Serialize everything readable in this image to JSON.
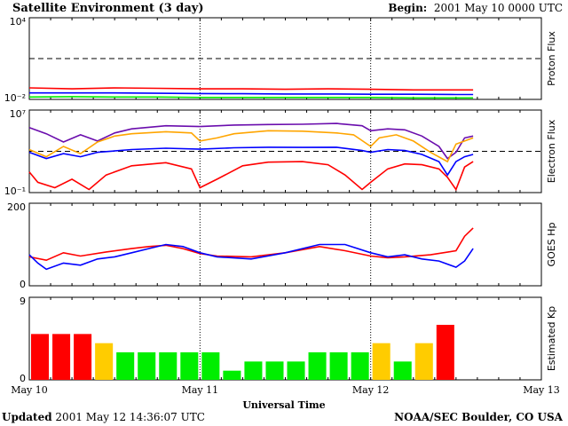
{
  "header": {
    "title": "Satellite Environment (3 day)",
    "begin_label": "Begin:",
    "begin_value": "2001 May 10 0000 UTC"
  },
  "footer": {
    "updated_label": "Updated",
    "updated_value": "2001 May 12 14:36:07 UTC",
    "credit": "NOAA/SEC Boulder, CO USA"
  },
  "colors": {
    "red": "#ff0000",
    "blue": "#0000ff",
    "green": "#00ee00",
    "orange": "#ffa500",
    "purple": "#6a0dad",
    "yellow": "#ffcc00"
  },
  "chart_data": [
    {
      "type": "line",
      "ylabel": "Proton Flux",
      "yscale": "log",
      "ylim": [
        0.01,
        10000
      ],
      "yticks": [
        {
          "value": 0.01,
          "label": "10⁻²"
        },
        {
          "value": 10000,
          "label": "10⁴"
        }
      ],
      "threshold": 10,
      "x_range_days": [
        0,
        3
      ],
      "series": [
        {
          "color": "red",
          "x": [
            0,
            0.25,
            0.5,
            0.75,
            1.0,
            1.25,
            1.5,
            1.75,
            2.0,
            2.25,
            2.5,
            2.6
          ],
          "y": [
            0.07,
            0.06,
            0.07,
            0.065,
            0.06,
            0.06,
            0.055,
            0.06,
            0.055,
            0.05,
            0.05,
            0.05
          ]
        },
        {
          "color": "blue",
          "x": [
            0,
            0.25,
            0.5,
            0.75,
            1.0,
            1.25,
            1.5,
            1.75,
            2.0,
            2.25,
            2.5,
            2.6
          ],
          "y": [
            0.03,
            0.03,
            0.03,
            0.028,
            0.027,
            0.026,
            0.025,
            0.025,
            0.024,
            0.024,
            0.023,
            0.023
          ]
        },
        {
          "color": "green",
          "x": [
            0,
            0.25,
            0.5,
            0.75,
            1.0,
            1.25,
            1.5,
            1.75,
            2.0,
            2.25,
            2.5,
            2.6
          ],
          "y": [
            0.015,
            0.016,
            0.015,
            0.015,
            0.014,
            0.014,
            0.014,
            0.014,
            0.014,
            0.013,
            0.013,
            0.013
          ]
        }
      ]
    },
    {
      "type": "line",
      "ylabel": "Electron Flux",
      "yscale": "log",
      "ylim": [
        0.1,
        10000000
      ],
      "yticks": [
        {
          "value": 0.1,
          "label": "10⁻¹"
        },
        {
          "value": 10000000,
          "label": "10⁷"
        }
      ],
      "threshold": 1000,
      "x_range_days": [
        0,
        3
      ],
      "series": [
        {
          "color": "purple",
          "x": [
            0,
            0.1,
            0.2,
            0.3,
            0.4,
            0.5,
            0.6,
            0.8,
            1.0,
            1.2,
            1.4,
            1.6,
            1.8,
            1.95,
            2.0,
            2.1,
            2.2,
            2.3,
            2.4,
            2.45,
            2.5,
            2.55,
            2.6
          ],
          "y": [
            200000,
            50000,
            8000,
            40000,
            10000,
            60000,
            150000,
            300000,
            250000,
            350000,
            400000,
            420000,
            500000,
            300000,
            100000,
            150000,
            120000,
            30000,
            3000,
            200,
            800,
            20000,
            30000
          ]
        },
        {
          "color": "orange",
          "x": [
            0,
            0.1,
            0.2,
            0.3,
            0.4,
            0.5,
            0.6,
            0.8,
            0.95,
            1.0,
            1.1,
            1.2,
            1.4,
            1.6,
            1.8,
            1.9,
            2.0,
            2.05,
            2.15,
            2.25,
            2.35,
            2.45,
            2.5,
            2.6
          ],
          "y": [
            1500,
            300,
            3000,
            600,
            8000,
            30000,
            50000,
            80000,
            60000,
            10000,
            20000,
            50000,
            100000,
            90000,
            60000,
            40000,
            3000,
            20000,
            40000,
            10000,
            800,
            100,
            5000,
            20000
          ]
        },
        {
          "color": "blue",
          "x": [
            0,
            0.1,
            0.2,
            0.3,
            0.4,
            0.6,
            0.8,
            1.0,
            1.2,
            1.4,
            1.6,
            1.8,
            1.95,
            2.0,
            2.1,
            2.2,
            2.3,
            2.4,
            2.45,
            2.5,
            2.55,
            2.6
          ],
          "y": [
            800,
            200,
            600,
            300,
            800,
            1500,
            2000,
            1600,
            2200,
            2500,
            2400,
            2500,
            1200,
            800,
            1500,
            1200,
            500,
            100,
            5,
            100,
            300,
            500
          ]
        },
        {
          "color": "red",
          "x": [
            0,
            0.05,
            0.15,
            0.25,
            0.35,
            0.45,
            0.6,
            0.8,
            0.95,
            1.0,
            1.1,
            1.25,
            1.4,
            1.6,
            1.75,
            1.85,
            1.95,
            2.0,
            2.1,
            2.2,
            2.3,
            2.4,
            2.45,
            2.5,
            2.55,
            2.6
          ],
          "y": [
            10,
            1,
            0.3,
            2,
            0.2,
            5,
            40,
            80,
            20,
            0.3,
            2,
            40,
            90,
            100,
            50,
            5,
            0.2,
            1,
            20,
            60,
            50,
            20,
            3,
            0.2,
            30,
            100
          ]
        }
      ]
    },
    {
      "type": "line",
      "ylabel": "GOES Hp",
      "ylim": [
        0,
        200
      ],
      "yticks": [
        {
          "value": 0,
          "label": "0"
        },
        {
          "value": 200,
          "label": "200"
        }
      ],
      "x_range_days": [
        0,
        3
      ],
      "series": [
        {
          "color": "red",
          "x": [
            0,
            0.1,
            0.2,
            0.3,
            0.45,
            0.6,
            0.7,
            0.8,
            0.9,
            1.0,
            1.1,
            1.3,
            1.5,
            1.7,
            1.85,
            2.0,
            2.1,
            2.2,
            2.35,
            2.5,
            2.55,
            2.6
          ],
          "y": [
            70,
            62,
            80,
            72,
            82,
            90,
            95,
            98,
            90,
            78,
            72,
            70,
            80,
            95,
            85,
            72,
            68,
            70,
            75,
            85,
            120,
            140
          ]
        },
        {
          "color": "blue",
          "x": [
            0,
            0.05,
            0.1,
            0.2,
            0.3,
            0.4,
            0.5,
            0.6,
            0.7,
            0.8,
            0.9,
            1.0,
            1.1,
            1.3,
            1.5,
            1.7,
            1.85,
            2.0,
            2.1,
            2.2,
            2.3,
            2.4,
            2.5,
            2.55,
            2.6
          ],
          "y": [
            75,
            55,
            40,
            55,
            50,
            65,
            70,
            80,
            90,
            100,
            95,
            80,
            70,
            65,
            80,
            100,
            100,
            80,
            70,
            75,
            65,
            60,
            45,
            60,
            90
          ]
        }
      ]
    },
    {
      "type": "bar",
      "ylabel": "Estimated Kp",
      "ylim": [
        0,
        9
      ],
      "yticks": [
        {
          "value": 0,
          "label": "0"
        },
        {
          "value": 9,
          "label": "9"
        }
      ],
      "bin_hours": 3,
      "values": [
        5,
        5,
        5,
        4,
        3,
        3,
        3,
        3,
        3,
        1,
        2,
        2,
        2,
        3,
        3,
        3,
        4,
        2,
        4,
        6
      ],
      "colors": [
        "red",
        "red",
        "red",
        "yellow",
        "green",
        "green",
        "green",
        "green",
        "green",
        "green",
        "green",
        "green",
        "green",
        "green",
        "green",
        "green",
        "yellow",
        "green",
        "yellow",
        "red"
      ]
    }
  ],
  "x_axis": {
    "label": "Universal Time",
    "ticks": [
      "May 10",
      "May 11",
      "May 12",
      "May 13"
    ]
  }
}
